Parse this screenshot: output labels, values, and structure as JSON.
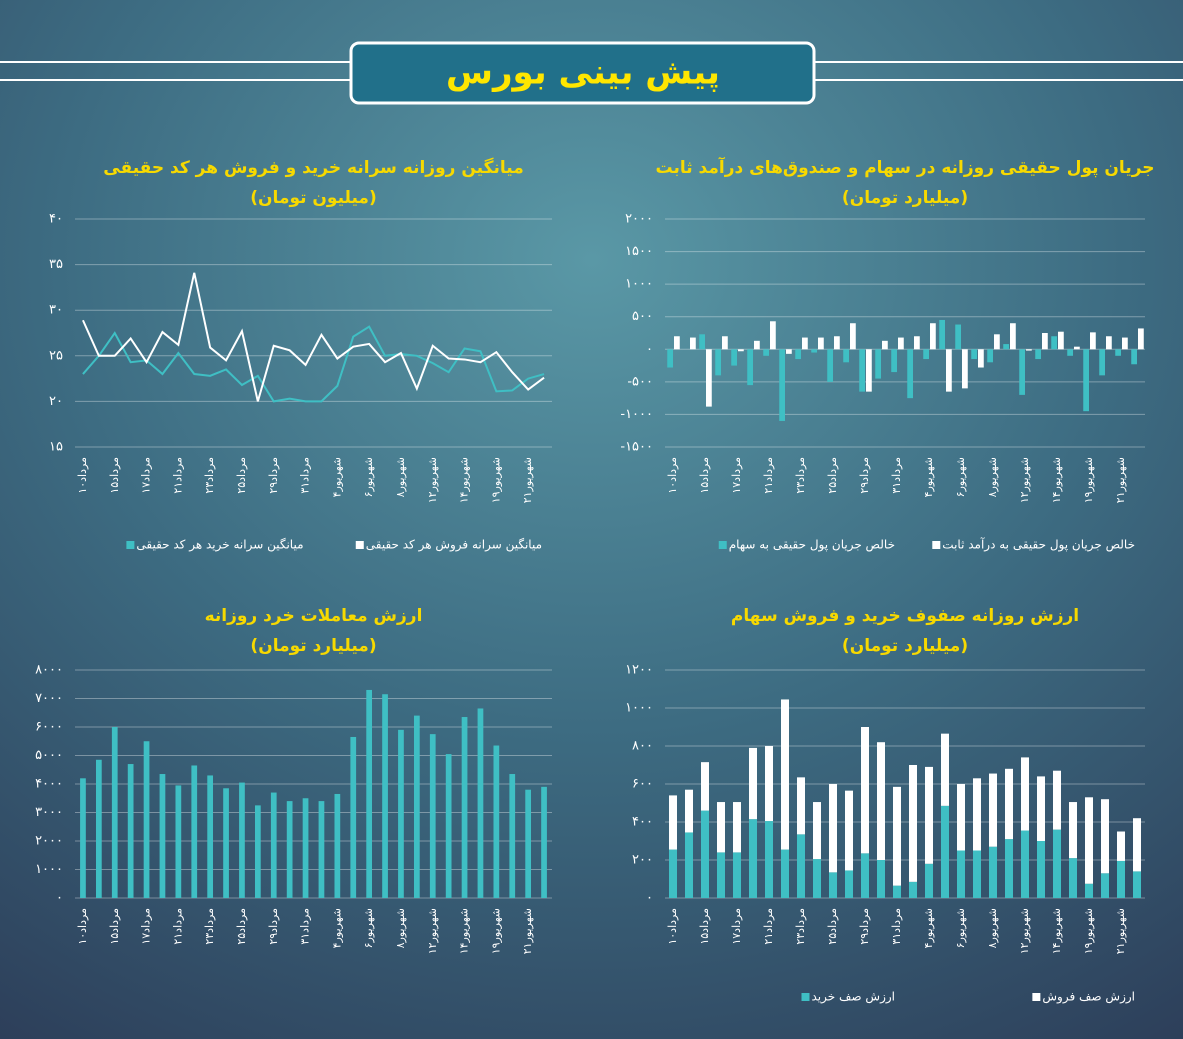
{
  "title": "پیش بینی بورس",
  "chart_data": [
    {
      "type": "line",
      "title": "میانگین روزانه سرانه خرید و فروش هر کد حقیقی",
      "subtitle": "(میلیون تومان)",
      "categories": [
        "مرداد۱۰",
        null,
        "مرداد۱۵",
        null,
        "مرداد۱۷",
        null,
        "مرداد۲۱",
        null,
        "مرداد۲۳",
        null,
        "مرداد۲۵",
        null,
        "مرداد۲۹",
        null,
        "مرداد۳۱",
        null,
        "شهریور۴",
        null,
        "شهریور۶",
        null,
        "شهریور۸",
        null,
        "شهریور۱۲",
        null,
        "شهریور۱۴",
        null,
        "شهریور۱۹",
        null,
        "شهریور۲۱",
        null
      ],
      "series": [
        {
          "name": "میانگین سرانه خرید هر کد حقیقی",
          "color": "#3fbfc4",
          "values": [
            23,
            25,
            27.5,
            24.3,
            24.5,
            23,
            25.3,
            23,
            22.8,
            23.5,
            21.8,
            22.8,
            20,
            20.3,
            20,
            20,
            21.7,
            27.1,
            28.2,
            25,
            25.2,
            25,
            24.2,
            23.2,
            25.8,
            25.5,
            21.1,
            21.2,
            22.5,
            23
          ]
        },
        {
          "name": "میانگین سرانه فروش هر کد حقیقی",
          "color": "#ffffff",
          "values": [
            28.9,
            25,
            25,
            26.9,
            24.3,
            27.6,
            26.2,
            34.1,
            25.9,
            24.5,
            27.7,
            20,
            26.1,
            25.6,
            24,
            27.3,
            24.7,
            26,
            26.3,
            24.3,
            25.3,
            21.4,
            26.1,
            24.7,
            24.6,
            24.3,
            25.4,
            23.2,
            21.3,
            22.6
          ]
        }
      ],
      "ylim": [
        15,
        40
      ],
      "yticks": [
        {
          "value": 15,
          "label": "۱۵"
        },
        {
          "value": 20,
          "label": "۲۰"
        },
        {
          "value": 25,
          "label": "۲۵"
        },
        {
          "value": 30,
          "label": "۳۰"
        },
        {
          "value": 35,
          "label": "۳۵"
        },
        {
          "value": 40,
          "label": "۴۰"
        }
      ],
      "grid": true
    },
    {
      "type": "bar",
      "title": "جریان پول حقیقی روزانه در سهام و صندوق‌های درآمد ثابت",
      "subtitle": "(میلیارد تومان)",
      "categories": [
        "مرداد۱۰",
        null,
        "مرداد۱۵",
        null,
        "مرداد۱۷",
        null,
        "مرداد۲۱",
        null,
        "مرداد۲۳",
        null,
        "مرداد۲۵",
        null,
        "مرداد۲۹",
        null,
        "مرداد۳۱",
        null,
        "شهریور۴",
        null,
        "شهریور۶",
        null,
        "شهریور۸",
        null,
        "شهریور۱۲",
        null,
        "شهریور۱۴",
        null,
        "شهریور۱۹",
        null,
        "شهریور۲۱",
        null
      ],
      "series": [
        {
          "name": "خالص جریان پول حقیقی به سهام",
          "color": "#3fbfc4",
          "values": [
            -280,
            0,
            230,
            -400,
            -250,
            -550,
            -100,
            -1100,
            -150,
            -50,
            -500,
            -200,
            -650,
            -450,
            -350,
            -750,
            -150,
            450,
            380,
            -150,
            -200,
            80,
            -700,
            -150,
            200,
            -100,
            -950,
            -400,
            -100,
            -230
          ]
        },
        {
          "name": "خالص جریان پول حقیقی به درآمد ثابت",
          "color": "#ffffff",
          "values": [
            200,
            180,
            -880,
            200,
            -30,
            130,
            430,
            -70,
            180,
            180,
            200,
            400,
            -650,
            130,
            180,
            200,
            400,
            -650,
            -600,
            -280,
            230,
            400,
            -20,
            250,
            270,
            40,
            260,
            200,
            180,
            320
          ]
        }
      ],
      "ylim": [
        -1500,
        2000
      ],
      "yticks": [
        {
          "value": -1500,
          "label": "-۱۵۰۰"
        },
        {
          "value": -1000,
          "label": "-۱۰۰۰"
        },
        {
          "value": -500,
          "label": "-۵۰۰"
        },
        {
          "value": 0,
          "label": "۰"
        },
        {
          "value": 500,
          "label": "۵۰۰"
        },
        {
          "value": 1000,
          "label": "۱۰۰۰"
        },
        {
          "value": 1500,
          "label": "۱۵۰۰"
        },
        {
          "value": 2000,
          "label": "۲۰۰۰"
        }
      ],
      "grid": true
    },
    {
      "type": "bar",
      "title": "ارزش معاملات خرد روزانه",
      "subtitle": "(میلیارد تومان)",
      "categories": [
        "مرداد۱۰",
        null,
        "مرداد۱۵",
        null,
        "مرداد۱۷",
        null,
        "مرداد۲۱",
        null,
        "مرداد۲۳",
        null,
        "مرداد۲۵",
        null,
        "مرداد۲۹",
        null,
        "مرداد۳۱",
        null,
        "شهریور۴",
        null,
        "شهریور۶",
        null,
        "شهریور۸",
        null,
        "شهریور۱۲",
        null,
        "شهریور۱۴",
        null,
        "شهریور۱۹",
        null,
        "شهریور۲۱",
        null
      ],
      "series": [
        {
          "color": "#3fbfc4",
          "values": [
            4200,
            4850,
            6000,
            4700,
            5500,
            4350,
            3950,
            4650,
            4300,
            3850,
            4050,
            3250,
            3700,
            3400,
            3500,
            3400,
            3650,
            5650,
            7300,
            7150,
            5900,
            6400,
            5750,
            5050,
            6350,
            6650,
            5350,
            4350,
            3800,
            3900
          ]
        }
      ],
      "ylim": [
        0,
        8000
      ],
      "yticks": [
        {
          "value": 0,
          "label": "۰"
        },
        {
          "value": 1000,
          "label": "۱۰۰۰"
        },
        {
          "value": 2000,
          "label": "۲۰۰۰"
        },
        {
          "value": 3000,
          "label": "۳۰۰۰"
        },
        {
          "value": 4000,
          "label": "۴۰۰۰"
        },
        {
          "value": 5000,
          "label": "۵۰۰۰"
        },
        {
          "value": 6000,
          "label": "۶۰۰۰"
        },
        {
          "value": 7000,
          "label": "۷۰۰۰"
        },
        {
          "value": 8000,
          "label": "۸۰۰۰"
        }
      ],
      "grid": true
    },
    {
      "type": "bar",
      "stacked": true,
      "title": "ارزش روزانه صفوف خرید و فروش سهام",
      "subtitle": "(میلیارد تومان)",
      "categories": [
        "مرداد۱۰",
        null,
        "مرداد۱۵",
        null,
        "مرداد۱۷",
        null,
        "مرداد۲۱",
        null,
        "مرداد۲۳",
        null,
        "مرداد۲۵",
        null,
        "مرداد۲۹",
        null,
        "مرداد۳۱",
        null,
        "شهریور۴",
        null,
        "شهریور۶",
        null,
        "شهریور۸",
        null,
        "شهریور۱۲",
        null,
        "شهریور۱۴",
        null,
        "شهریور۱۹",
        null,
        "شهریور۲۱",
        null
      ],
      "series": [
        {
          "name": "ارزش صف خرید",
          "color": "#3fbfc4",
          "values": [
            255,
            345,
            460,
            240,
            240,
            415,
            405,
            255,
            335,
            205,
            135,
            145,
            235,
            200,
            65,
            85,
            180,
            485,
            250,
            250,
            270,
            310,
            355,
            300,
            360,
            210,
            75,
            130,
            195,
            140
          ]
        },
        {
          "name": "ارزش صف فروش",
          "color": "#ffffff",
          "values": [
            285,
            225,
            255,
            265,
            265,
            375,
            395,
            790,
            300,
            300,
            465,
            420,
            665,
            620,
            520,
            615,
            510,
            380,
            350,
            380,
            385,
            370,
            385,
            340,
            310,
            295,
            455,
            390,
            155,
            280
          ]
        }
      ],
      "ylim": [
        0,
        1200
      ],
      "yticks": [
        {
          "value": 0,
          "label": "۰"
        },
        {
          "value": 200,
          "label": "۲۰۰"
        },
        {
          "value": 400,
          "label": "۴۰۰"
        },
        {
          "value": 600,
          "label": "۶۰۰"
        },
        {
          "value": 800,
          "label": "۸۰۰"
        },
        {
          "value": 1000,
          "label": "۱۰۰۰"
        },
        {
          "value": 1200,
          "label": "۱۲۰۰"
        }
      ],
      "grid": true
    }
  ]
}
